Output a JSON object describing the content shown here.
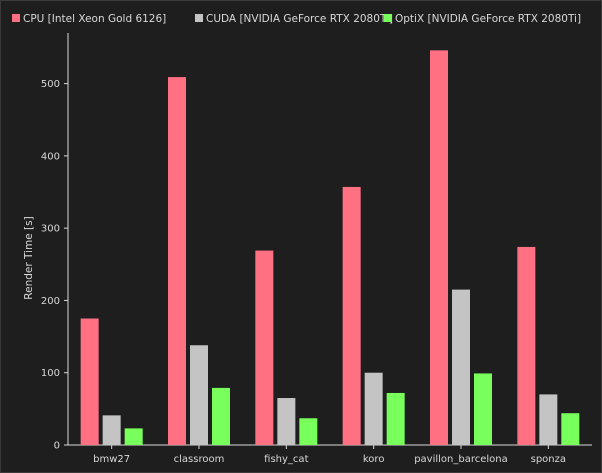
{
  "chart_data": {
    "type": "bar",
    "title": "",
    "xlabel": "",
    "ylabel": "Render Time [s]",
    "categories": [
      "bmw27",
      "classroom",
      "fishy_cat",
      "koro",
      "pavillon_barcelona",
      "sponza"
    ],
    "series": [
      {
        "name": "CPU [Intel Xeon Gold 6126]",
        "color": "#ff7083",
        "values": [
          175,
          509,
          269,
          357,
          546,
          274
        ]
      },
      {
        "name": "CUDA [NVIDIA GeForce RTX 2080Ti]",
        "color": "#c4c4c4",
        "values": [
          41,
          138,
          65,
          100,
          215,
          70
        ]
      },
      {
        "name": "OptiX [NVIDIA GeForce RTX 2080Ti]",
        "color": "#78ff5c",
        "values": [
          23,
          79,
          37,
          72,
          99,
          44
        ]
      }
    ],
    "ylim": [
      0,
      570
    ],
    "yticks": [
      0,
      100,
      200,
      300,
      400,
      500
    ],
    "grid": false,
    "legend_position": "top-left",
    "background": "#1e1e1e",
    "text_color": "#d8d8d8"
  }
}
